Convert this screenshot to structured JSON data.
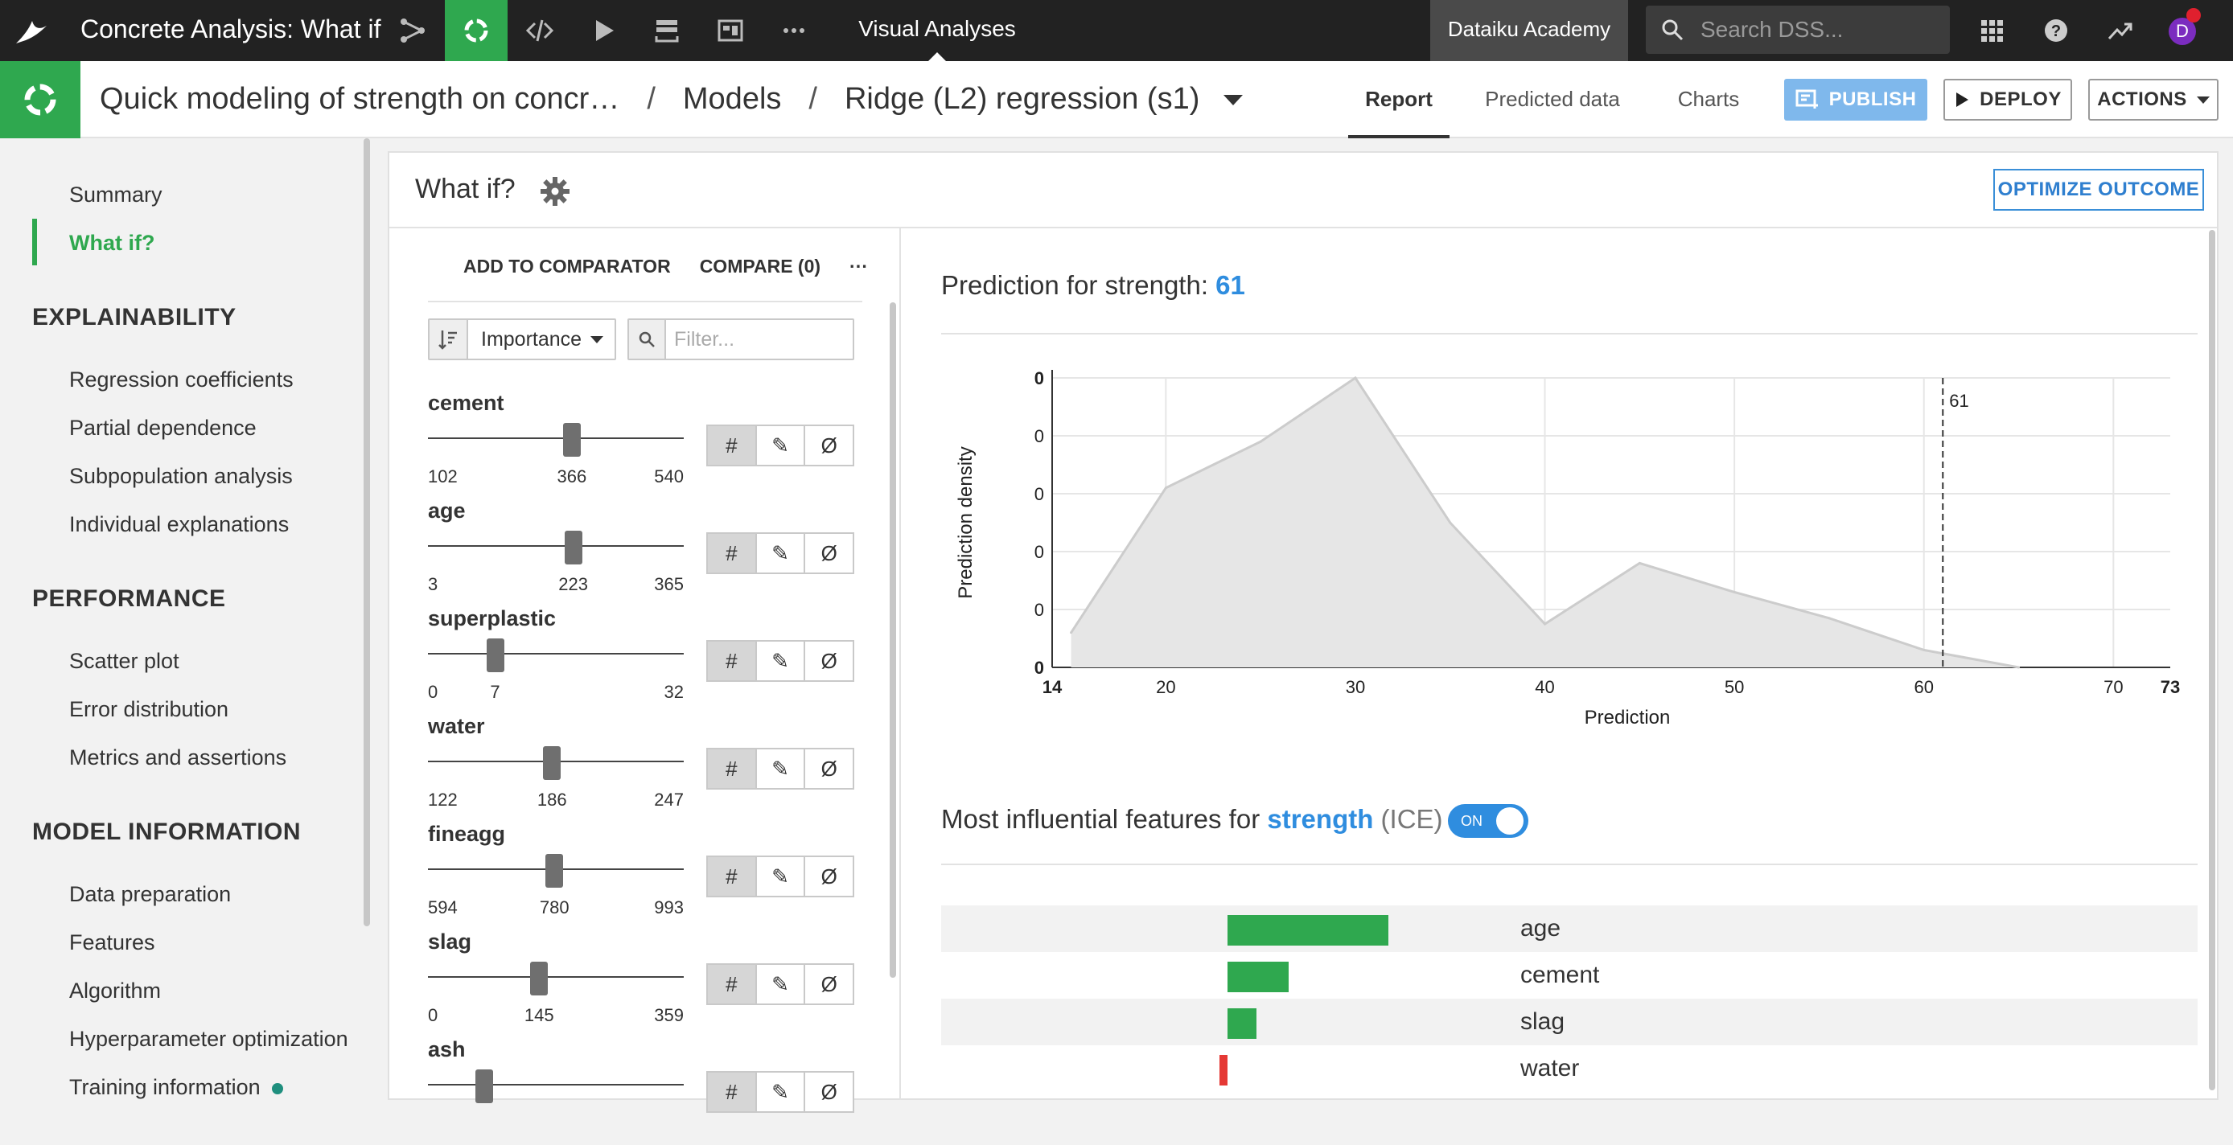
{
  "topbar": {
    "app_title": "Concrete Analysis: What if",
    "section": "Visual Analyses",
    "academy": "Dataiku Academy",
    "search_placeholder": "Search DSS...",
    "avatar_initial": "D",
    "icons": [
      "bird-logo-icon",
      "flow-icon",
      "analysis-icon",
      "code-icon",
      "run-icon",
      "stack-icon",
      "dashboard-icon",
      "more-icon",
      "apps-grid-icon",
      "help-icon",
      "activity-icon"
    ]
  },
  "header": {
    "breadcrumb": {
      "project": "Quick modeling of strength on concr…",
      "models": "Models",
      "model": "Ridge (L2) regression (s1)"
    },
    "tabs": {
      "report": "Report",
      "predicted": "Predicted data",
      "charts": "Charts"
    },
    "buttons": {
      "publish": "PUBLISH",
      "deploy": "DEPLOY",
      "actions": "ACTIONS"
    }
  },
  "sidebar": {
    "summary": "Summary",
    "whatif": "What if?",
    "sections": [
      {
        "title": "EXPLAINABILITY",
        "items": [
          "Regression coefficients",
          "Partial dependence",
          "Subpopulation analysis",
          "Individual explanations"
        ]
      },
      {
        "title": "PERFORMANCE",
        "items": [
          "Scatter plot",
          "Error distribution",
          "Metrics and assertions"
        ]
      },
      {
        "title": "MODEL INFORMATION",
        "items": [
          "Data preparation",
          "Features",
          "Algorithm",
          "Hyperparameter optimization",
          "Training information"
        ]
      }
    ]
  },
  "main": {
    "title": "What if?",
    "optimize": "OPTIMIZE OUTCOME",
    "controls": {
      "add_to_comparator": "ADD TO COMPARATOR",
      "compare": "COMPARE (0)",
      "more": "···",
      "sort_by": "Importance",
      "filter_placeholder": "Filter..."
    },
    "modes": {
      "numeric": "#",
      "edit": "✎",
      "empty": "Ø"
    },
    "features": [
      {
        "name": "cement",
        "min": "102",
        "value": "366",
        "max": "540",
        "level": 0.567
      },
      {
        "name": "age",
        "min": "3",
        "value": "223",
        "max": "365",
        "level": 0.573
      },
      {
        "name": "superplastic",
        "min": "0",
        "value": "7",
        "max": "32",
        "level": 0.245
      },
      {
        "name": "water",
        "min": "122",
        "value": "186",
        "max": "247",
        "level": 0.484
      },
      {
        "name": "fineagg",
        "min": "594",
        "value": "780",
        "max": "993",
        "level": 0.494
      },
      {
        "name": "slag",
        "min": "0",
        "value": "145",
        "max": "359",
        "level": 0.43
      },
      {
        "name": "ash",
        "min": "",
        "value": "",
        "max": "",
        "level": 0.2
      }
    ],
    "prediction": {
      "label": "Prediction for strength: ",
      "value": "61"
    },
    "ice": {
      "label": "Most influential features for ",
      "feature": "strength",
      "suffix": " (ICE)",
      "toggle": "ON",
      "bars": [
        {
          "name": "age",
          "value": 1.0,
          "color": "#2fa84f"
        },
        {
          "name": "cement",
          "value": 0.38,
          "color": "#2fa84f"
        },
        {
          "name": "slag",
          "value": 0.18,
          "color": "#2fa84f"
        },
        {
          "name": "water",
          "value": -0.05,
          "color": "#e53935"
        }
      ]
    }
  },
  "chart_data": {
    "type": "area",
    "xlabel": "Prediction",
    "ylabel": "Prediction density",
    "xlim": [
      14,
      73
    ],
    "x_ticks": [
      "14",
      "20",
      "30",
      "40",
      "50",
      "60",
      "70",
      "73"
    ],
    "y_ticks": [
      "0",
      "0",
      "0",
      "0",
      "0",
      "0"
    ],
    "x": [
      15,
      20,
      25,
      30,
      35,
      40,
      45,
      50,
      55,
      60,
      65
    ],
    "values": [
      0.12,
      0.62,
      0.78,
      1.0,
      0.5,
      0.15,
      0.36,
      0.26,
      0.17,
      0.06,
      0.0
    ],
    "marker": {
      "x": 61,
      "label": "61"
    },
    "fill_color": "#e6e6e6",
    "line_color": "#cccccc"
  }
}
